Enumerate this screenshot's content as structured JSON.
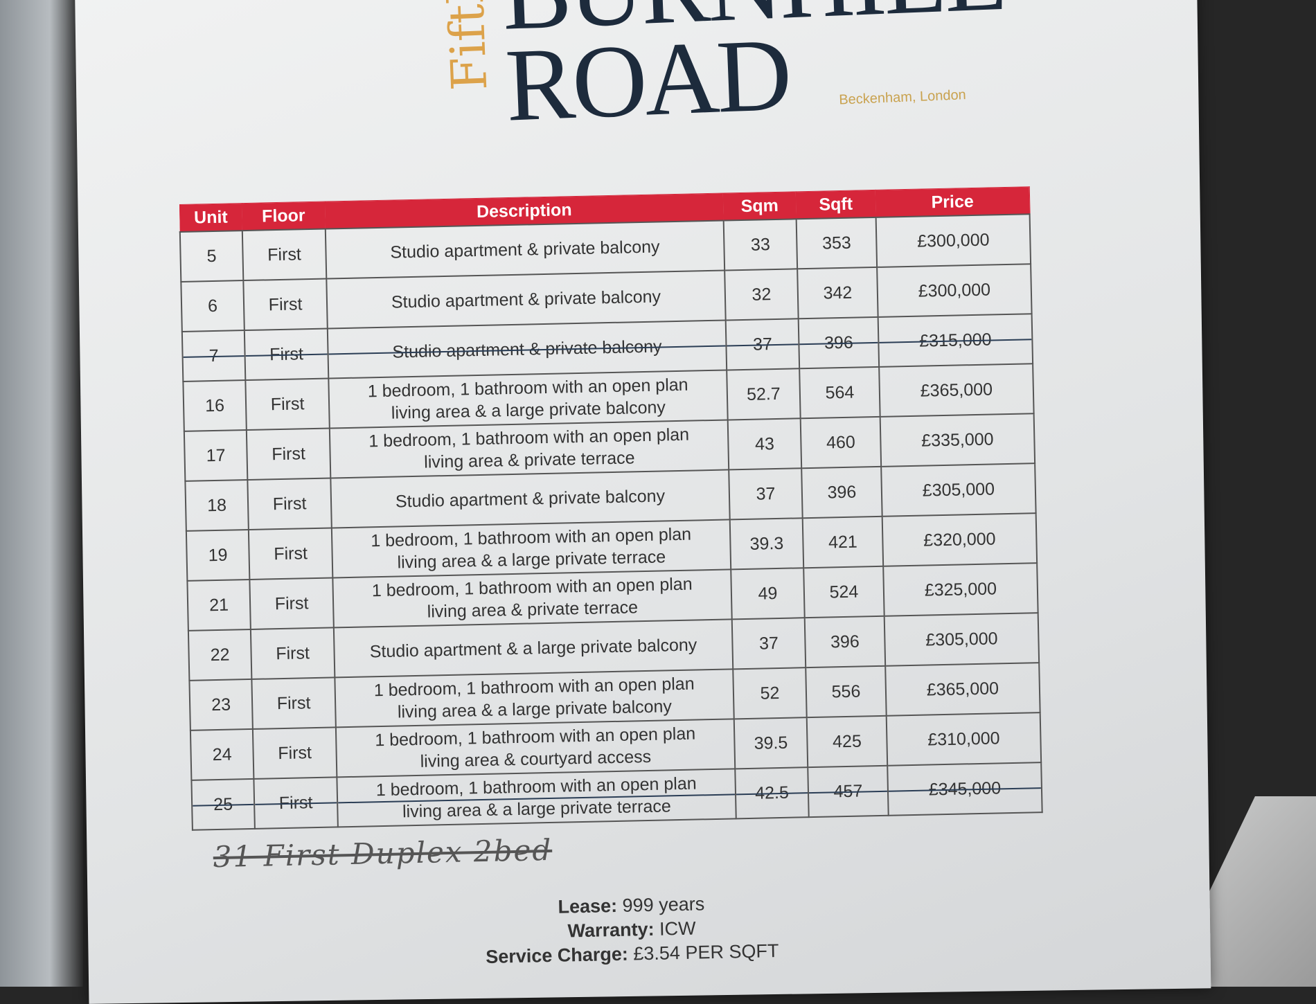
{
  "logo": {
    "fifth": "Fifth",
    "line1": "BURNHILL",
    "line2": "ROAD",
    "location": "Beckenham, London"
  },
  "colors": {
    "header": "#d6263a",
    "brand_navy": "#1d2b3c",
    "brand_gold": "#dca24a"
  },
  "table": {
    "headers": [
      "Unit",
      "Floor",
      "Description",
      "Sqm",
      "Sqft",
      "Price"
    ],
    "rows": [
      {
        "unit": "5",
        "floor": "First",
        "desc1": "Studio apartment & private balcony",
        "desc2": "",
        "sqm": "33",
        "sqft": "353",
        "price": "£300,000",
        "struck": false
      },
      {
        "unit": "6",
        "floor": "First",
        "desc1": "Studio apartment & private balcony",
        "desc2": "",
        "sqm": "32",
        "sqft": "342",
        "price": "£300,000",
        "struck": false
      },
      {
        "unit": "7",
        "floor": "First",
        "desc1": "Studio apartment & private balcony",
        "desc2": "",
        "sqm": "37",
        "sqft": "396",
        "price": "£315,000",
        "struck": true
      },
      {
        "unit": "16",
        "floor": "First",
        "desc1": "1 bedroom, 1 bathroom with an open plan",
        "desc2": "living area & a large private balcony",
        "sqm": "52.7",
        "sqft": "564",
        "price": "£365,000",
        "struck": false
      },
      {
        "unit": "17",
        "floor": "First",
        "desc1": "1 bedroom, 1 bathroom with an open plan",
        "desc2": "living area & private terrace",
        "sqm": "43",
        "sqft": "460",
        "price": "£335,000",
        "struck": false
      },
      {
        "unit": "18",
        "floor": "First",
        "desc1": "Studio apartment & private balcony",
        "desc2": "",
        "sqm": "37",
        "sqft": "396",
        "price": "£305,000",
        "struck": false
      },
      {
        "unit": "19",
        "floor": "First",
        "desc1": "1 bedroom, 1 bathroom with an open plan",
        "desc2": "living area & a large private terrace",
        "sqm": "39.3",
        "sqft": "421",
        "price": "£320,000",
        "struck": false
      },
      {
        "unit": "21",
        "floor": "First",
        "desc1": "1 bedroom, 1 bathroom with an open plan",
        "desc2": "living area & private terrace",
        "sqm": "49",
        "sqft": "524",
        "price": "£325,000",
        "struck": false
      },
      {
        "unit": "22",
        "floor": "First",
        "desc1": "Studio apartment & a large private balcony",
        "desc2": "",
        "sqm": "37",
        "sqft": "396",
        "price": "£305,000",
        "struck": false
      },
      {
        "unit": "23",
        "floor": "First",
        "desc1": "1 bedroom, 1 bathroom with an open plan",
        "desc2": "living area & a large private balcony",
        "sqm": "52",
        "sqft": "556",
        "price": "£365,000",
        "struck": false
      },
      {
        "unit": "24",
        "floor": "First",
        "desc1": "1 bedroom, 1 bathroom with an open plan",
        "desc2": "living area & courtyard access",
        "sqm": "39.5",
        "sqft": "425",
        "price": "£310,000",
        "struck": false
      },
      {
        "unit": "25",
        "floor": "First",
        "desc1": "1 bedroom, 1 bathroom with an open plan",
        "desc2": "living area & a large private terrace",
        "sqm": "42.5",
        "sqft": "457",
        "price": "£345,000",
        "struck": true
      }
    ]
  },
  "handwritten_note": "31 First Duplex 2bed",
  "footer": {
    "lease_label": "Lease:",
    "lease_value": "999 years",
    "warranty_label": "Warranty:",
    "warranty_value": "ICW",
    "service_label": "Service Charge:",
    "service_value": "£3.54 PER SQFT"
  }
}
